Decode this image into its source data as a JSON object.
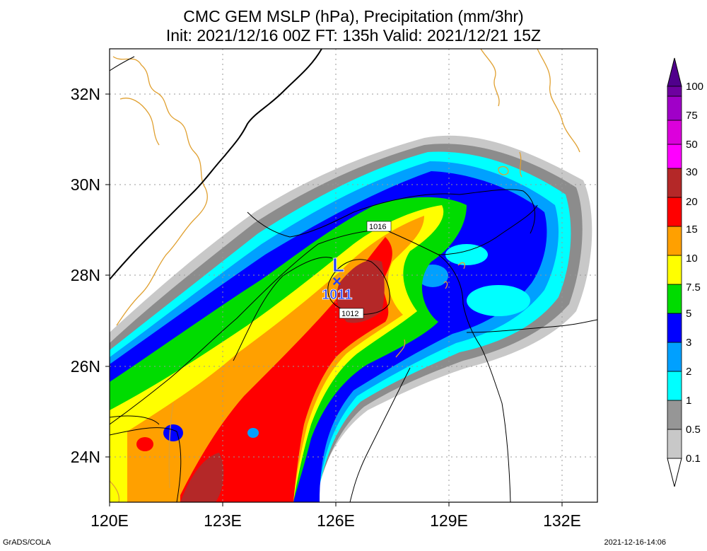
{
  "title_line1": "CMC GEM MSLP (hPa), Precipitation (mm/3hr)",
  "title_line2": "Init: 2021/12/16 00Z  FT: 135h  Valid: 2021/12/21 15Z",
  "lat_labels": [
    "32N",
    "30N",
    "28N",
    "26N",
    "24N"
  ],
  "lon_labels": [
    "120E",
    "123E",
    "126E",
    "129E",
    "132E"
  ],
  "colorbar": {
    "levels": [
      {
        "label": "0.1",
        "color": "#c8c8c8"
      },
      {
        "label": "0.5",
        "color": "#969696"
      },
      {
        "label": "1",
        "color": "#00ffff"
      },
      {
        "label": "2",
        "color": "#00a0ff"
      },
      {
        "label": "3",
        "color": "#0000ff"
      },
      {
        "label": "5",
        "color": "#00dc00"
      },
      {
        "label": "7.5",
        "color": "#ffff00"
      },
      {
        "label": "10",
        "color": "#ffa000"
      },
      {
        "label": "15",
        "color": "#ff0000"
      },
      {
        "label": "20",
        "color": "#b42828"
      },
      {
        "label": "30",
        "color": "#ff00ff"
      },
      {
        "label": "50",
        "color": "#dc00dc"
      },
      {
        "label": "75",
        "color": "#a000c8"
      },
      {
        "label": "100",
        "color": "#6e00a0"
      }
    ],
    "top_arrow_color": "#50008c"
  },
  "low_center": {
    "symbol": "L",
    "marker": "×",
    "pressure": "1011",
    "color": "#2040ff"
  },
  "isobar_labels": [
    "1016",
    "1012"
  ],
  "coast_color": "#e0a030",
  "credit": "GrADS/COLA",
  "timestamp": "2021-12-16-14:06"
}
